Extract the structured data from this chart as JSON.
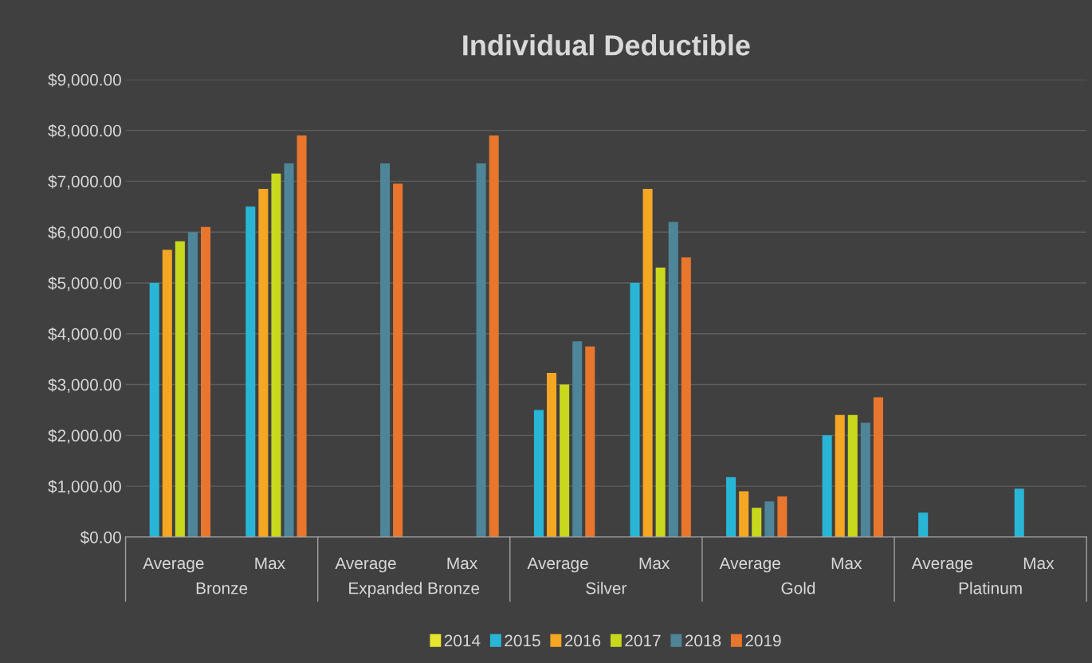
{
  "chart_data": {
    "type": "bar",
    "title": "Individual Deductible",
    "categories": [
      "Average",
      "Max",
      "Average",
      "Max",
      "Average",
      "Max",
      "Average",
      "Max",
      "Average",
      "Max"
    ],
    "annotations": [
      "Bronze",
      "Expanded Bronze",
      "Silver",
      "Gold",
      "Platinum"
    ],
    "series": [
      {
        "name": "2014",
        "color": "#e6e62e",
        "values": [
          null,
          null,
          null,
          null,
          null,
          null,
          null,
          null,
          null,
          null
        ]
      },
      {
        "name": "2015",
        "color": "#29b6d6",
        "values": [
          5000,
          6500,
          null,
          null,
          2500,
          5000,
          1180,
          2000,
          480,
          950
        ]
      },
      {
        "name": "2016",
        "color": "#f5a623",
        "values": [
          5650,
          6850,
          null,
          null,
          3230,
          6850,
          900,
          2400,
          null,
          null
        ]
      },
      {
        "name": "2017",
        "color": "#c8d81c",
        "values": [
          5820,
          7150,
          null,
          null,
          3000,
          5300,
          575,
          2400,
          null,
          null
        ]
      },
      {
        "name": "2018",
        "color": "#4f8598",
        "values": [
          6000,
          7350,
          7350,
          7350,
          3850,
          6200,
          700,
          2250,
          null,
          null
        ]
      },
      {
        "name": "2019",
        "color": "#e8762c",
        "values": [
          6100,
          7900,
          6950,
          7900,
          3750,
          5500,
          800,
          2750,
          null,
          null
        ]
      }
    ],
    "ylim": [
      0,
      9000
    ],
    "yticks": [
      {
        "value": 0,
        "label": "$0.00"
      },
      {
        "value": 1000,
        "label": "$1,000.00"
      },
      {
        "value": 2000,
        "label": "$2,000.00"
      },
      {
        "value": 3000,
        "label": "$3,000.00"
      },
      {
        "value": 4000,
        "label": "$4,000.00"
      },
      {
        "value": 5000,
        "label": "$5,000.00"
      },
      {
        "value": 6000,
        "label": "$6,000.00"
      },
      {
        "value": 7000,
        "label": "$7,000.00"
      },
      {
        "value": 8000,
        "label": "$8,000.00"
      },
      {
        "value": 9000,
        "label": "$9,000.00"
      }
    ],
    "grid": "y",
    "legend": "bottom"
  }
}
